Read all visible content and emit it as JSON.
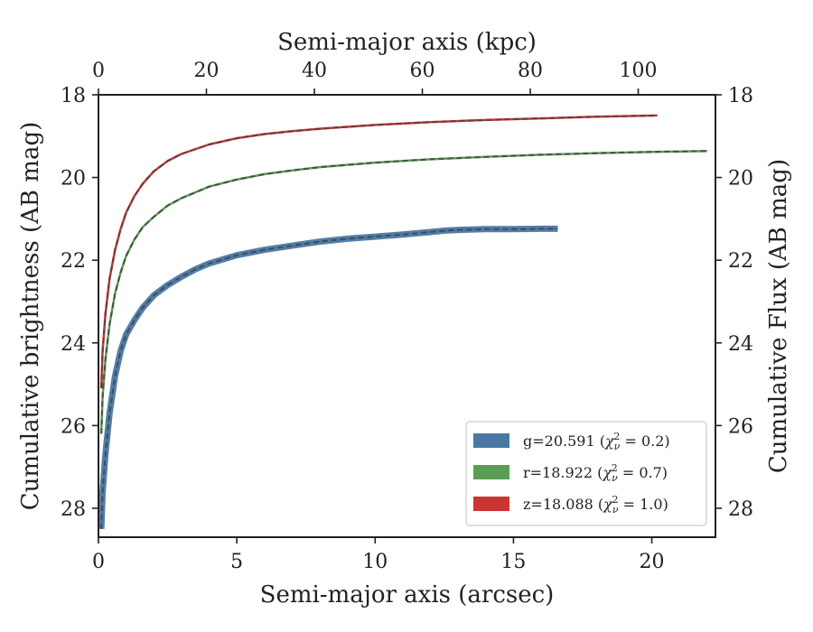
{
  "chart_data": {
    "type": "line",
    "xlabel": "Semi-major axis (arcsec)",
    "ylabel": "Cumulative brightness (AB mag)",
    "top_xlabel": "Semi-major axis (kpc)",
    "right_ylabel": "Cumulative Flux (AB mag)",
    "xlim": [
      0,
      22.3
    ],
    "ylim": [
      28.7,
      18.0
    ],
    "top_xlim": [
      0,
      114.3
    ],
    "y_inverted": true,
    "grid": false,
    "legend_position": "lower-right",
    "x_ticks": [
      0,
      5,
      10,
      15,
      20
    ],
    "y_ticks": [
      18,
      20,
      22,
      24,
      26,
      28
    ],
    "top_x_ticks": [
      0,
      20,
      40,
      60,
      80,
      100
    ],
    "series": [
      {
        "name": "g=20.591 ($\\chi^2_\\nu=0.2$)",
        "legend_parts": [
          "g=20.591 (",
          "χ",
          "ν",
          "2",
          " = 0.2)"
        ],
        "color": "#4a78a4",
        "band": true,
        "x": [
          0.1,
          0.15,
          0.25,
          0.4,
          0.6,
          0.8,
          1.0,
          1.3,
          1.6,
          2.0,
          2.5,
          3.0,
          3.5,
          4.0,
          5.0,
          6.0,
          7.0,
          8.0,
          9.0,
          10.0,
          11.0,
          12.0,
          12.6,
          13.0,
          14.0,
          15.0,
          16.0,
          16.6
        ],
        "y": [
          28.5,
          27.6,
          26.7,
          25.7,
          24.8,
          24.2,
          23.8,
          23.45,
          23.15,
          22.85,
          22.6,
          22.4,
          22.22,
          22.08,
          21.88,
          21.75,
          21.65,
          21.55,
          21.48,
          21.43,
          21.38,
          21.32,
          21.28,
          21.27,
          21.25,
          21.25,
          21.24,
          21.24
        ]
      },
      {
        "name": "r=18.922 ($\\chi^2_\\nu=0.7$)",
        "legend_parts": [
          "r=18.922 (",
          "χ",
          "ν",
          "2",
          " = 0.7)"
        ],
        "color": "#5a9e54",
        "band": false,
        "x": [
          0.1,
          0.15,
          0.25,
          0.4,
          0.6,
          0.8,
          1.0,
          1.3,
          1.6,
          2.0,
          2.5,
          3.0,
          4.0,
          5.0,
          6.0,
          7.0,
          8.0,
          10.0,
          12.0,
          14.0,
          16.0,
          18.0,
          20.0,
          22.0
        ],
        "y": [
          26.2,
          25.3,
          24.4,
          23.55,
          22.8,
          22.3,
          21.9,
          21.5,
          21.2,
          20.95,
          20.68,
          20.5,
          20.22,
          20.05,
          19.92,
          19.83,
          19.75,
          19.64,
          19.56,
          19.5,
          19.45,
          19.41,
          19.38,
          19.36
        ]
      },
      {
        "name": "z=18.088 ($\\chi^2_\\nu=1.0$)",
        "legend_parts": [
          "z=18.088 (",
          "χ",
          "ν",
          "2",
          " = 1.0)"
        ],
        "color": "#cc3333",
        "band": false,
        "x": [
          0.1,
          0.15,
          0.25,
          0.4,
          0.6,
          0.8,
          1.0,
          1.3,
          1.6,
          2.0,
          2.5,
          3.0,
          4.0,
          5.0,
          6.0,
          7.0,
          8.0,
          10.0,
          12.0,
          14.0,
          16.0,
          18.0,
          20.2
        ],
        "y": [
          25.1,
          24.2,
          23.3,
          22.45,
          21.75,
          21.25,
          20.85,
          20.45,
          20.15,
          19.85,
          19.6,
          19.43,
          19.2,
          19.05,
          18.95,
          18.88,
          18.82,
          18.73,
          18.66,
          18.61,
          18.57,
          18.53,
          18.5
        ]
      }
    ]
  }
}
